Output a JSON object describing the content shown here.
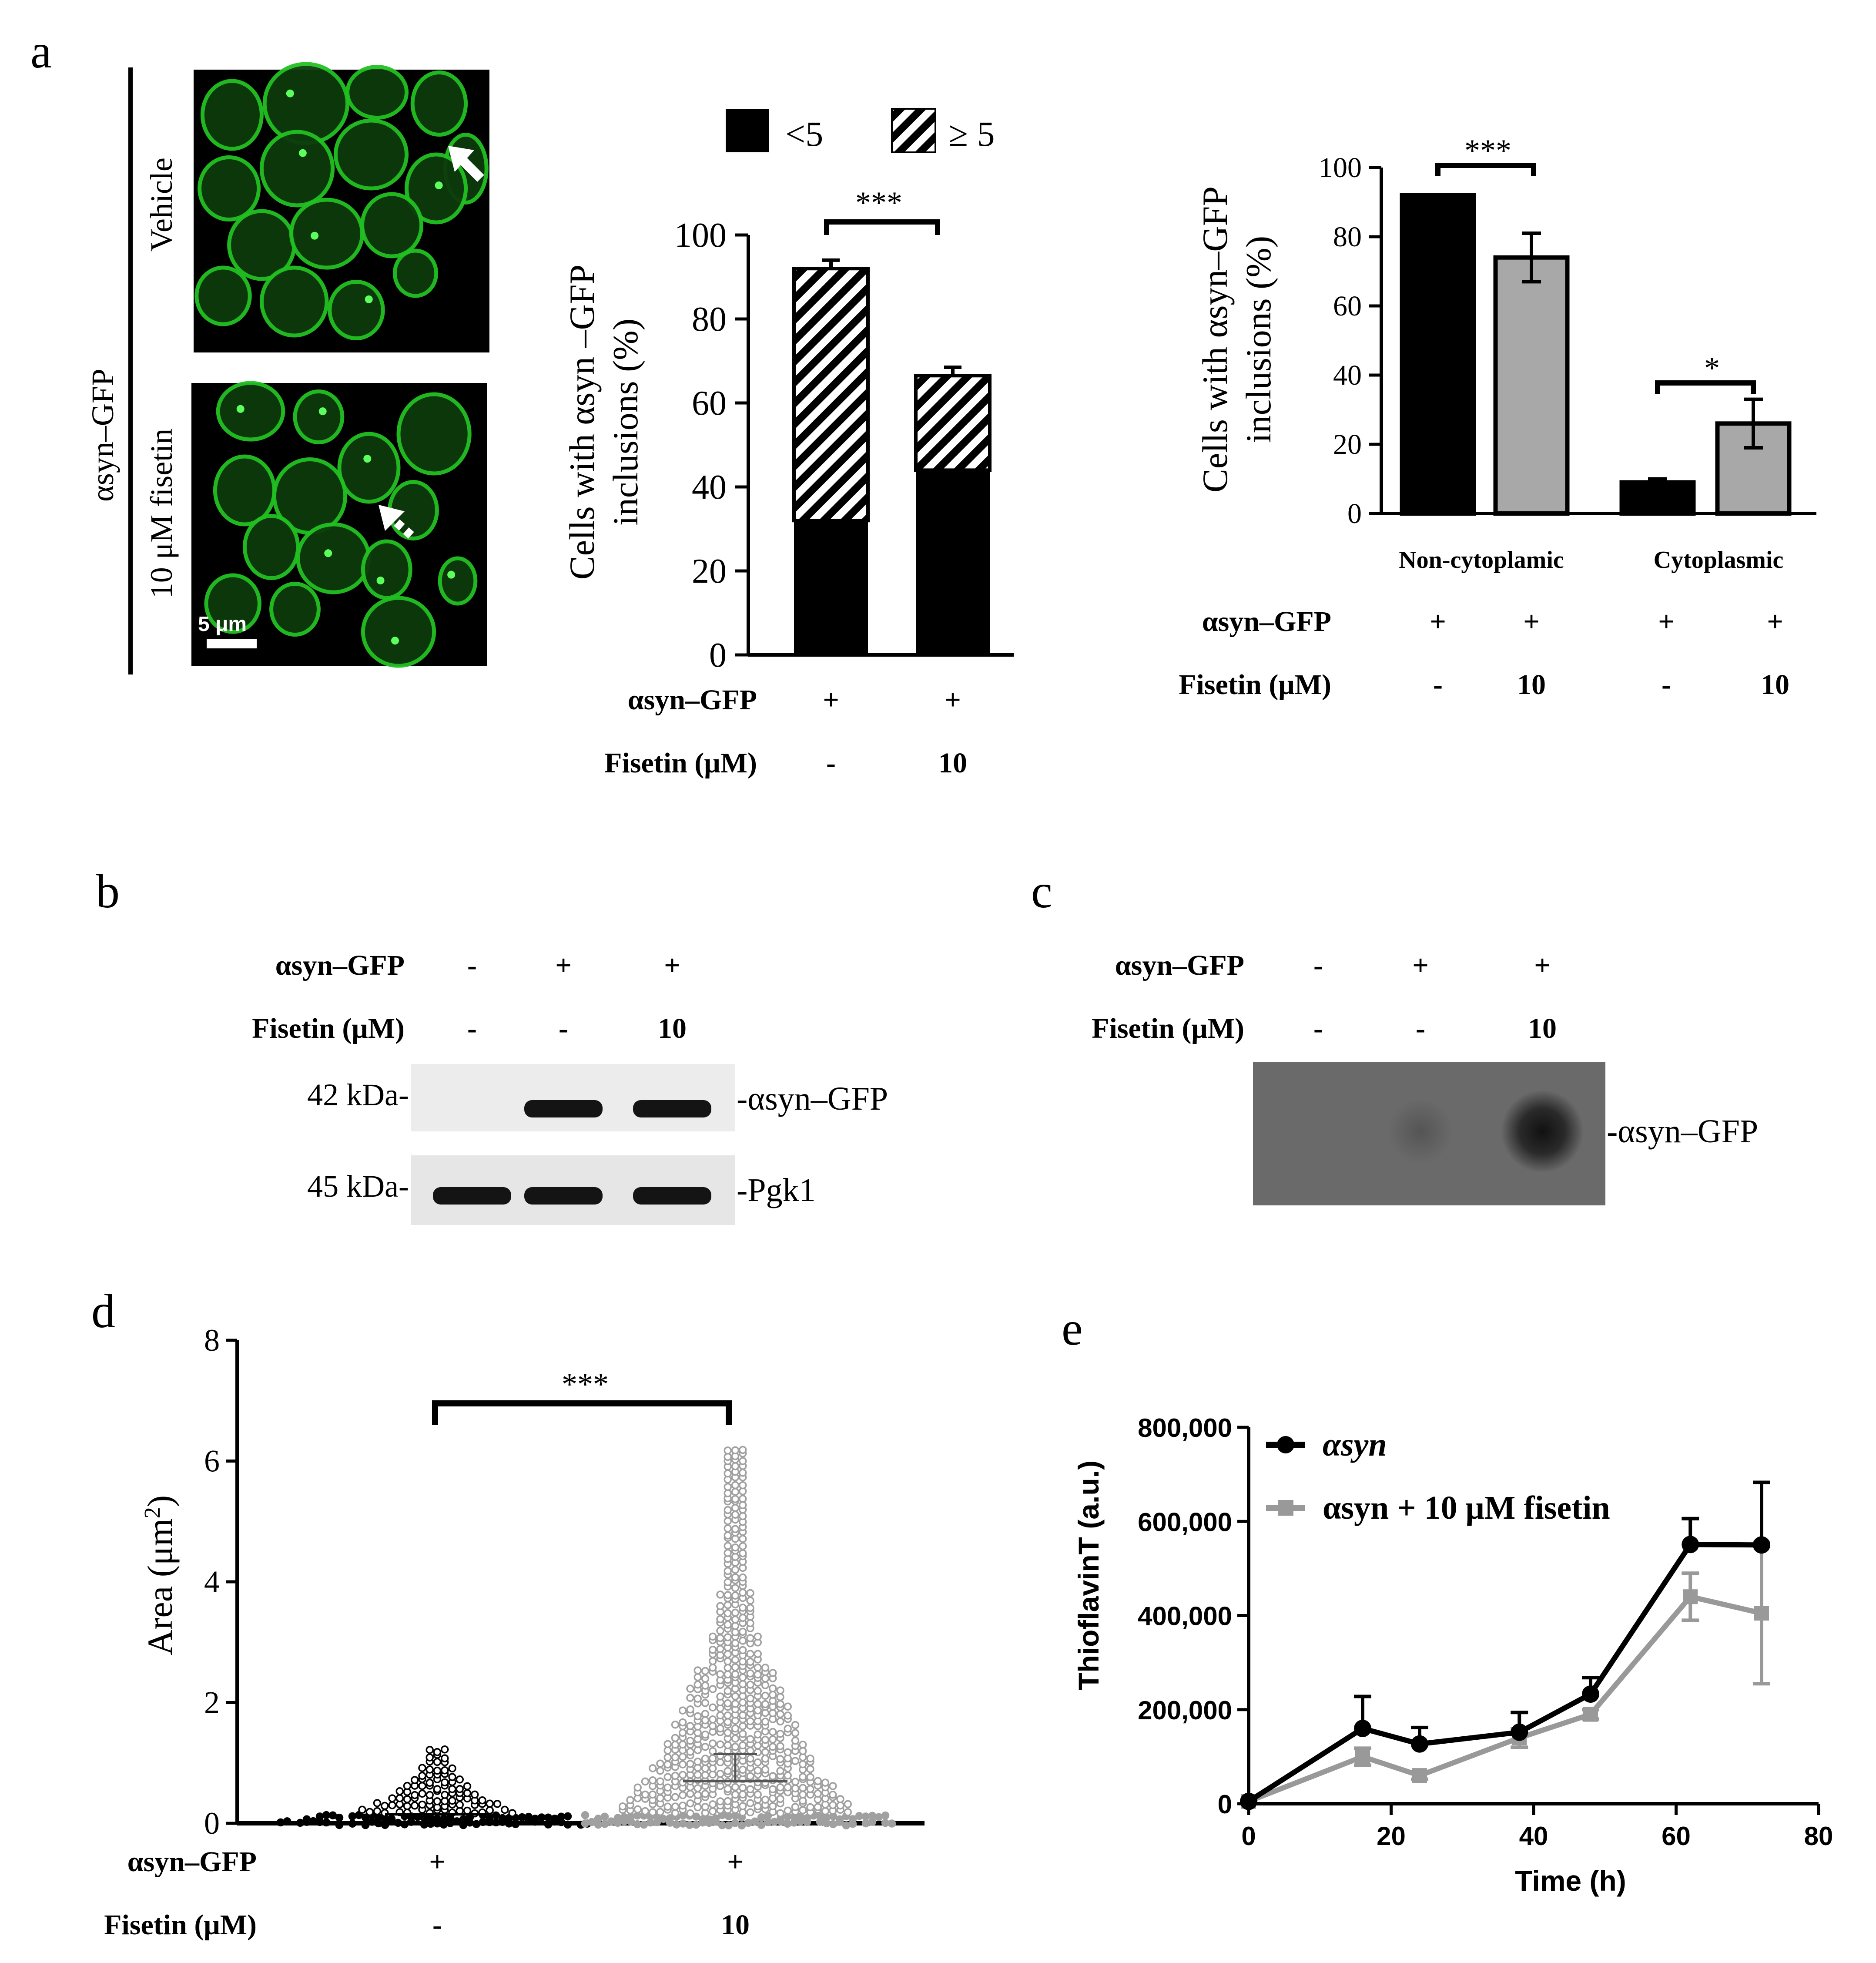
{
  "panel_letters": {
    "a": "a",
    "b": "b",
    "c": "c",
    "d": "d",
    "e": "e"
  },
  "panel_a": {
    "row_label": "αsyn–GFP",
    "image_labels": [
      "Vehicle",
      "10 μM fisetin"
    ],
    "scalebar_label": "5 μm",
    "micrograph_color": "#22c122"
  },
  "chart_data": [
    {
      "id": "a-stacked-bar",
      "type": "bar",
      "stacked": true,
      "legend": [
        "<5",
        "≥ 5"
      ],
      "legend_position": "top",
      "ylabel_lines": [
        "Cells with αsyn –GFP",
        "inclusions (%)"
      ],
      "ylim": [
        0,
        100
      ],
      "yticks": [
        "0",
        "20",
        "40",
        "60",
        "80",
        "100"
      ],
      "categories": [
        "Vehicle",
        "10 μM fisetin"
      ],
      "series": [
        {
          "name": "<5",
          "values": [
            32,
            44
          ],
          "color": "#000000"
        },
        {
          "name": "≥ 5",
          "values": [
            60,
            22
          ],
          "pattern": "diagonal-stripes"
        }
      ],
      "totals": [
        92,
        66.5
      ],
      "error": [
        2,
        2
      ],
      "significance": "***",
      "condition_rows": [
        {
          "label": "αsyn–GFP",
          "values": [
            "+",
            "+"
          ]
        },
        {
          "label": "Fisetin (μM)",
          "values": [
            "-",
            "10"
          ]
        }
      ]
    },
    {
      "id": "a-grouped-bar",
      "type": "bar",
      "ylabel_lines": [
        "Cells with αsyn–GFP",
        "inclusions (%)"
      ],
      "ylim": [
        0,
        100
      ],
      "yticks": [
        "0",
        "20",
        "40",
        "60",
        "80",
        "100"
      ],
      "groups": [
        "Non-cytoplamic",
        "Cytoplasmic"
      ],
      "series": [
        {
          "values": [
            92,
            9
          ],
          "error": [
            0,
            1
          ],
          "color": "#000000"
        },
        {
          "values": [
            74,
            26
          ],
          "error": [
            7,
            7
          ],
          "color": "#a8a8a8"
        }
      ],
      "significance": [
        "***",
        "*"
      ],
      "condition_rows": [
        {
          "label": "αsyn–GFP",
          "values": [
            "+",
            "+",
            "+",
            "+"
          ]
        },
        {
          "label": "Fisetin (μM)",
          "values": [
            "-",
            "10",
            "-",
            "10"
          ]
        }
      ]
    },
    {
      "id": "d-dotplot",
      "type": "scatter",
      "ylabel": "Area (μm",
      "ylabel_sup": "2",
      "ylabel_end": ")",
      "ylim": [
        0,
        8
      ],
      "yticks": [
        "0",
        "2",
        "4",
        "6",
        "8"
      ],
      "groups": [
        {
          "color": "#000000",
          "max": 1.25,
          "mean": 0.15
        },
        {
          "color": "#a0a0a0",
          "max": 6.2,
          "mean": 0.7,
          "sd_upper": 1.15
        }
      ],
      "significance": "***",
      "condition_rows": [
        {
          "label": "αsyn–GFP",
          "values": [
            "+",
            "+"
          ]
        },
        {
          "label": "Fisetin (μM)",
          "values": [
            "-",
            "10"
          ]
        }
      ]
    },
    {
      "id": "e-line",
      "type": "line",
      "xlabel": "Time (h)",
      "ylabel": "ThioflavinT (a.u.)",
      "xlim": [
        0,
        80
      ],
      "ylim": [
        0,
        800000
      ],
      "xticks": [
        "0",
        "20",
        "40",
        "60",
        "80"
      ],
      "yticks": [
        "0",
        "200,000",
        "400,000",
        "600,000",
        "800,000"
      ],
      "legend_position": "top-left",
      "series": [
        {
          "name": "αsyn",
          "color": "#000000",
          "marker": "circle",
          "x": [
            0,
            16,
            24,
            38,
            48,
            62,
            72
          ],
          "y": [
            5000,
            160000,
            127000,
            152000,
            233000,
            551000,
            550000
          ],
          "err": [
            0,
            68000,
            35000,
            42000,
            35000,
            55000,
            133000
          ]
        },
        {
          "name": "αsyn + 10 μM fisetin",
          "color": "#999999",
          "marker": "square",
          "x": [
            0,
            16,
            24,
            38,
            48,
            62,
            72
          ],
          "y": [
            5000,
            100000,
            60000,
            140000,
            190000,
            440000,
            405000
          ],
          "err": [
            0,
            18000,
            8000,
            20000,
            10000,
            50000,
            150000
          ]
        }
      ]
    }
  ],
  "panel_b": {
    "condition_rows": [
      {
        "label": "αsyn–GFP",
        "values": [
          "-",
          "+",
          "+"
        ]
      },
      {
        "label": "Fisetin (μM)",
        "values": [
          "-",
          "-",
          "10"
        ]
      }
    ],
    "blots": [
      {
        "mw": "42 kDa-",
        "target": "-αsyn–GFP",
        "bands": [
          0,
          1,
          1
        ]
      },
      {
        "mw": "45 kDa-",
        "target": "-Pgk1",
        "bands": [
          1,
          1,
          1
        ]
      }
    ]
  },
  "panel_c": {
    "condition_rows": [
      {
        "label": "αsyn–GFP",
        "values": [
          "-",
          "+",
          "+"
        ]
      },
      {
        "label": "Fisetin (μM)",
        "values": [
          "-",
          "-",
          "10"
        ]
      }
    ],
    "target": "-αsyn–GFP",
    "spots": [
      0,
      0.35,
      1
    ]
  }
}
